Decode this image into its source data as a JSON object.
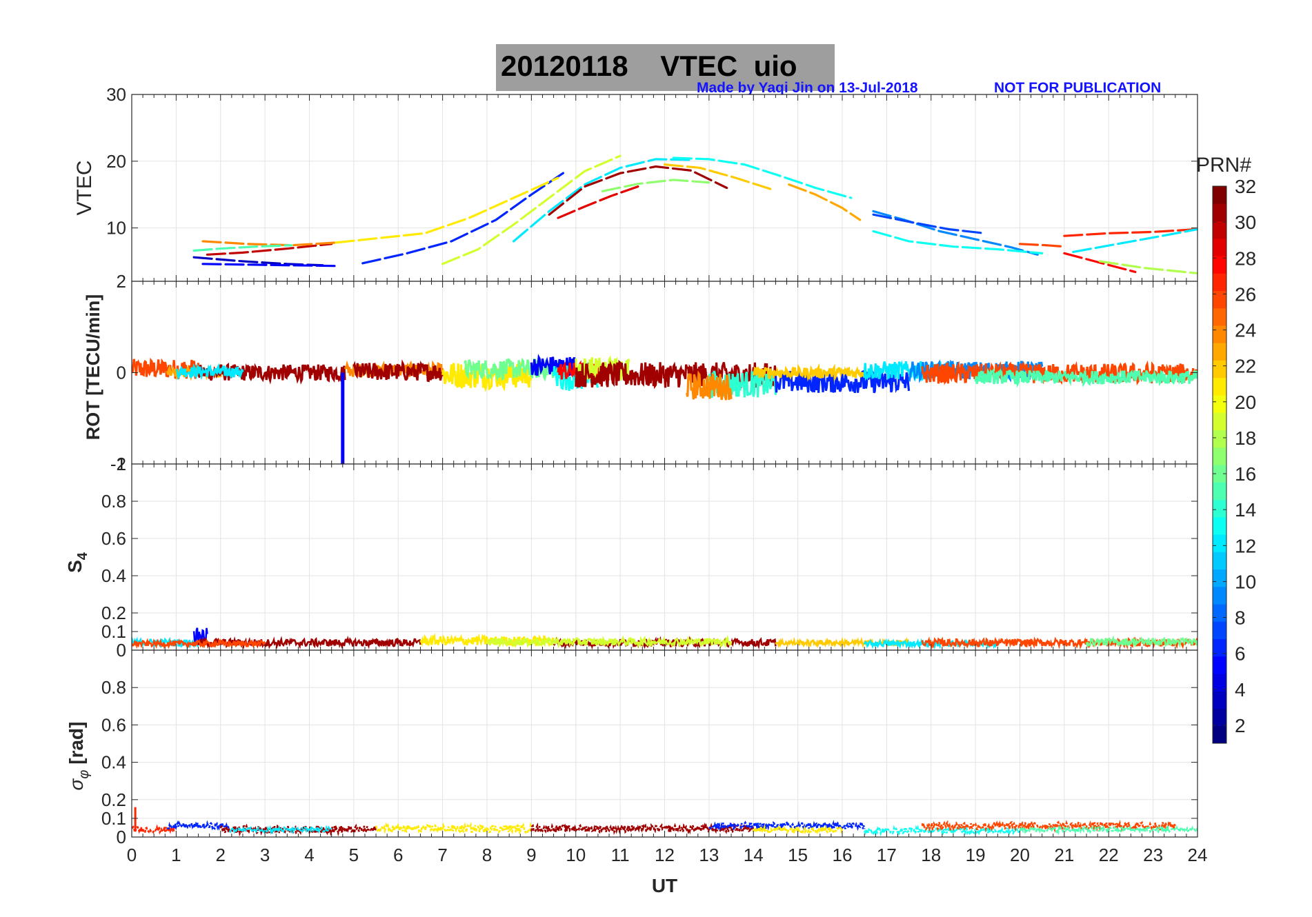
{
  "header": {
    "title": "20120118    VTEC  uio",
    "credit": "Made by Yaqi Jin on 13-Jul-2018",
    "notice": "NOT FOR PUBLICATION"
  },
  "chart_data": [
    {
      "type": "line",
      "panel": "vtec",
      "title": "20120118    VTEC  uio",
      "xlabel": "",
      "ylabel": "VTEC",
      "xlim": [
        0,
        24
      ],
      "ylim": [
        2,
        30
      ],
      "yticks": [
        "10",
        "20",
        "30"
      ],
      "grid": true,
      "series": [
        {
          "name": "PRN 3",
          "prn": 3,
          "x": [
            1.4,
            2.5,
            3.5,
            4.3
          ],
          "y": [
            5.6,
            5.0,
            4.6,
            4.4
          ]
        },
        {
          "name": "PRN 5",
          "prn": 5,
          "x": [
            1.6,
            2.6,
            3.6,
            4.6
          ],
          "y": [
            4.6,
            4.5,
            4.4,
            4.3
          ]
        },
        {
          "name": "PRN 30",
          "prn": 30,
          "x": [
            1.7,
            2.5,
            3.5,
            4.5
          ],
          "y": [
            6.0,
            6.3,
            6.9,
            7.6
          ]
        },
        {
          "name": "PRN 24",
          "prn": 24,
          "x": [
            1.6,
            2.6,
            3.6,
            4.6
          ],
          "y": [
            8.0,
            7.6,
            7.4,
            7.8
          ]
        },
        {
          "name": "PRN 15",
          "prn": 15,
          "x": [
            1.4,
            2.0,
            2.8,
            3.6
          ],
          "y": [
            6.6,
            6.9,
            7.2,
            7.4
          ]
        },
        {
          "name": "PRN 6",
          "prn": 6,
          "x": [
            5.2,
            6.2,
            7.2,
            8.2,
            9.0,
            9.8
          ],
          "y": [
            4.7,
            6.2,
            8.0,
            11.2,
            15.0,
            18.6
          ]
        },
        {
          "name": "PRN 21",
          "prn": 21,
          "x": [
            4.6,
            5.6,
            6.6,
            7.6,
            8.6,
            9.6
          ],
          "y": [
            7.8,
            8.5,
            9.2,
            11.5,
            14.5,
            17.5
          ]
        },
        {
          "name": "PRN 19",
          "prn": 19,
          "x": [
            7.0,
            7.8,
            8.6,
            9.4,
            10.2,
            11.0
          ],
          "y": [
            4.6,
            6.8,
            10.5,
            14.5,
            18.5,
            20.8
          ]
        },
        {
          "name": "PRN 12",
          "prn": 12,
          "x": [
            8.6,
            9.4,
            10.2,
            11.0,
            11.8,
            12.6
          ],
          "y": [
            8.0,
            12.5,
            16.5,
            19.0,
            20.3,
            20.2
          ]
        },
        {
          "name": "PRN 29",
          "prn": 29,
          "x": [
            9.6,
            10.2,
            10.8,
            11.4
          ],
          "y": [
            11.5,
            13.2,
            14.8,
            16.2
          ]
        },
        {
          "name": "PRN 31",
          "prn": 31,
          "x": [
            9.4,
            10.2,
            11.0,
            11.8,
            12.6,
            13.4
          ],
          "y": [
            12.0,
            16.2,
            18.2,
            19.2,
            18.6,
            16.0
          ]
        },
        {
          "name": "PRN 22",
          "prn": 22,
          "x": [
            12.0,
            12.8,
            13.6,
            14.4
          ],
          "y": [
            19.5,
            19.0,
            17.5,
            15.8
          ]
        },
        {
          "name": "PRN 17",
          "prn": 17,
          "x": [
            10.6,
            11.4,
            12.2,
            13.0
          ],
          "y": [
            15.5,
            16.6,
            17.2,
            16.8
          ]
        },
        {
          "name": "PRN 13",
          "prn": 13,
          "x": [
            12.2,
            13.0,
            13.8,
            14.6,
            15.4,
            16.2
          ],
          "y": [
            20.5,
            20.3,
            19.5,
            17.8,
            16.0,
            14.5
          ]
        },
        {
          "name": "PRN 23",
          "prn": 23,
          "x": [
            14.8,
            15.4,
            16.0,
            16.4
          ],
          "y": [
            16.5,
            15.0,
            13.0,
            11.2
          ]
        },
        {
          "name": "PRN 9",
          "prn": 9,
          "x": [
            16.7,
            17.4,
            18.2,
            19.0,
            19.8,
            20.4
          ],
          "y": [
            12.5,
            11.2,
            9.5,
            8.3,
            7.1,
            6.0
          ]
        },
        {
          "name": "PRN 7",
          "prn": 7,
          "x": [
            16.7,
            17.6,
            18.4,
            19.2
          ],
          "y": [
            12.0,
            10.8,
            9.8,
            9.2
          ]
        },
        {
          "name": "PRN 13b",
          "prn": 13,
          "x": [
            16.7,
            17.5,
            18.5,
            19.5,
            20.5
          ],
          "y": [
            9.5,
            8.0,
            7.2,
            6.8,
            6.2
          ]
        },
        {
          "name": "PRN 27",
          "prn": 27,
          "x": [
            21.0,
            22.0,
            23.0,
            24.0
          ],
          "y": [
            8.8,
            9.2,
            9.4,
            9.8
          ]
        },
        {
          "name": "PRN 28",
          "prn": 28,
          "x": [
            21.0,
            21.8,
            22.6
          ],
          "y": [
            6.2,
            4.8,
            3.4
          ]
        },
        {
          "name": "PRN 18",
          "prn": 18,
          "x": [
            21.8,
            22.8,
            24.0
          ],
          "y": [
            5.0,
            4.0,
            3.2
          ]
        },
        {
          "name": "PRN 12b",
          "prn": 12,
          "x": [
            21.2,
            22.2,
            23.2,
            24.0
          ],
          "y": [
            6.4,
            7.6,
            8.8,
            9.8
          ]
        },
        {
          "name": "PRN 26",
          "prn": 26,
          "x": [
            20.0,
            20.6,
            21.0
          ],
          "y": [
            7.6,
            7.4,
            7.2
          ]
        }
      ]
    },
    {
      "type": "line",
      "panel": "rot",
      "ylabel": "ROT [TECU/min]",
      "xlim": [
        0,
        24
      ],
      "ylim": [
        -2,
        2
      ],
      "yticks": [
        "-2",
        "0",
        "2"
      ],
      "bottom_tick_overlap": "-1",
      "grid": true,
      "spike": {
        "x": 4.75,
        "y_from": 0,
        "y_to": -2,
        "prn": 5
      },
      "bands": [
        {
          "prn": 26,
          "x": [
            0,
            1.5
          ],
          "center": 0.08,
          "amp": 0.22
        },
        {
          "prn": 23,
          "x": [
            0.8,
            2.2
          ],
          "center": 0.0,
          "amp": 0.1
        },
        {
          "prn": 31,
          "x": [
            1.5,
            4.8
          ],
          "center": 0.0,
          "amp": 0.18
        },
        {
          "prn": 12,
          "x": [
            1.0,
            2.5
          ],
          "center": 0.02,
          "amp": 0.12
        },
        {
          "prn": 24,
          "x": [
            4.8,
            7.0
          ],
          "center": 0.05,
          "amp": 0.15
        },
        {
          "prn": 31,
          "x": [
            5.0,
            7.0
          ],
          "center": 0.02,
          "amp": 0.2
        },
        {
          "prn": 21,
          "x": [
            7.0,
            9.0
          ],
          "center": -0.05,
          "amp": 0.3
        },
        {
          "prn": 16,
          "x": [
            7.5,
            9.6
          ],
          "center": 0.08,
          "amp": 0.22
        },
        {
          "prn": 5,
          "x": [
            9.0,
            10.0
          ],
          "center": 0.15,
          "amp": 0.22
        },
        {
          "prn": 13,
          "x": [
            9.5,
            10.5
          ],
          "center": -0.1,
          "amp": 0.3
        },
        {
          "prn": 28,
          "x": [
            9.6,
            11.0
          ],
          "center": 0.03,
          "amp": 0.2
        },
        {
          "prn": 19,
          "x": [
            10.0,
            11.2
          ],
          "center": 0.1,
          "amp": 0.25
        },
        {
          "prn": 31,
          "x": [
            10.0,
            14.5
          ],
          "center": -0.05,
          "amp": 0.28
        },
        {
          "prn": 14,
          "x": [
            13.0,
            14.5
          ],
          "center": -0.25,
          "amp": 0.3
        },
        {
          "prn": 24,
          "x": [
            12.5,
            13.5
          ],
          "center": -0.3,
          "amp": 0.3
        },
        {
          "prn": 6,
          "x": [
            14.5,
            17.5
          ],
          "center": -0.2,
          "amp": 0.25
        },
        {
          "prn": 22,
          "x": [
            14.0,
            16.5
          ],
          "center": 0.0,
          "amp": 0.12
        },
        {
          "prn": 12,
          "x": [
            16.5,
            18.5
          ],
          "center": 0.05,
          "amp": 0.2
        },
        {
          "prn": 9,
          "x": [
            17.5,
            20.5
          ],
          "center": 0.05,
          "amp": 0.2
        },
        {
          "prn": 26,
          "x": [
            17.8,
            24.0
          ],
          "center": -0.02,
          "amp": 0.22
        },
        {
          "prn": 15,
          "x": [
            19.0,
            24.0
          ],
          "center": -0.1,
          "amp": 0.15
        }
      ]
    },
    {
      "type": "line",
      "panel": "s4",
      "ylabel": "S4",
      "ylabel_main": "S",
      "ylabel_sub": "4",
      "xlim": [
        0,
        24
      ],
      "ylim": [
        0,
        1
      ],
      "yticks": [
        "0",
        "0.1",
        "0.2",
        "0.4",
        "0.6",
        "0.8"
      ],
      "top_tick_overlap": "1",
      "grid": true,
      "bands": [
        {
          "prn": 12,
          "x": [
            0,
            1.5
          ],
          "center": 0.04,
          "amp": 0.02
        },
        {
          "prn": 5,
          "x": [
            1.4,
            1.7
          ],
          "center": 0.08,
          "amp": 0.04
        },
        {
          "prn": 31,
          "x": [
            1.5,
            6.5
          ],
          "center": 0.04,
          "amp": 0.02
        },
        {
          "prn": 26,
          "x": [
            0,
            3.0
          ],
          "center": 0.035,
          "amp": 0.015
        },
        {
          "prn": 21,
          "x": [
            6.5,
            9.5
          ],
          "center": 0.05,
          "amp": 0.025
        },
        {
          "prn": 31,
          "x": [
            9.5,
            14.5
          ],
          "center": 0.04,
          "amp": 0.02
        },
        {
          "prn": 19,
          "x": [
            8.0,
            13.5
          ],
          "center": 0.045,
          "amp": 0.02
        },
        {
          "prn": 22,
          "x": [
            14.5,
            17.5
          ],
          "center": 0.04,
          "amp": 0.015
        },
        {
          "prn": 12,
          "x": [
            16.5,
            19.5
          ],
          "center": 0.035,
          "amp": 0.015
        },
        {
          "prn": 26,
          "x": [
            17.8,
            24.0
          ],
          "center": 0.04,
          "amp": 0.02
        },
        {
          "prn": 16,
          "x": [
            21.5,
            24.0
          ],
          "center": 0.045,
          "amp": 0.02
        }
      ]
    },
    {
      "type": "scatter",
      "panel": "sigma_phi",
      "ylabel": "σφ [rad]",
      "ylabel_main": "σ",
      "ylabel_sub": "φ",
      "ylabel_unit": " [rad]",
      "xlim": [
        0,
        24
      ],
      "ylim": [
        0,
        1
      ],
      "yticks": [
        "0",
        "0.1",
        "0.2",
        "0.4",
        "0.6",
        "0.8"
      ],
      "xticks": [
        "0",
        "1",
        "2",
        "3",
        "4",
        "5",
        "6",
        "7",
        "8",
        "9",
        "10",
        "11",
        "12",
        "13",
        "14",
        "15",
        "16",
        "17",
        "18",
        "19",
        "20",
        "21",
        "22",
        "23",
        "24"
      ],
      "xlabel": "UT",
      "grid": true,
      "initial_spike": {
        "x": 0.08,
        "y": 0.16,
        "prn": 27
      },
      "bands": [
        {
          "prn": 27,
          "x": [
            0,
            1.0
          ],
          "center": 0.04,
          "amp": 0.015
        },
        {
          "prn": 6,
          "x": [
            0.8,
            2.2
          ],
          "center": 0.06,
          "amp": 0.015
        },
        {
          "prn": 31,
          "x": [
            2.0,
            5.5
          ],
          "center": 0.04,
          "amp": 0.02
        },
        {
          "prn": 12,
          "x": [
            2.2,
            4.5
          ],
          "center": 0.04,
          "amp": 0.012
        },
        {
          "prn": 21,
          "x": [
            5.5,
            9.0
          ],
          "center": 0.045,
          "amp": 0.02
        },
        {
          "prn": 31,
          "x": [
            9.0,
            14.0
          ],
          "center": 0.045,
          "amp": 0.018
        },
        {
          "prn": 6,
          "x": [
            13.0,
            16.5
          ],
          "center": 0.06,
          "amp": 0.018
        },
        {
          "prn": 21,
          "x": [
            14.0,
            16.0
          ],
          "center": 0.04,
          "amp": 0.015
        },
        {
          "prn": 13,
          "x": [
            16.5,
            20.0
          ],
          "center": 0.035,
          "amp": 0.015
        },
        {
          "prn": 26,
          "x": [
            17.8,
            23.5
          ],
          "center": 0.06,
          "amp": 0.02
        },
        {
          "prn": 15,
          "x": [
            20.0,
            24.0
          ],
          "center": 0.04,
          "amp": 0.012
        }
      ]
    }
  ],
  "colorbar": {
    "label": "PRN#",
    "colormap": "jet",
    "range": [
      1,
      32
    ],
    "ticks": [
      "2",
      "4",
      "6",
      "8",
      "10",
      "12",
      "14",
      "16",
      "18",
      "20",
      "22",
      "24",
      "26",
      "28",
      "30",
      "32"
    ]
  }
}
